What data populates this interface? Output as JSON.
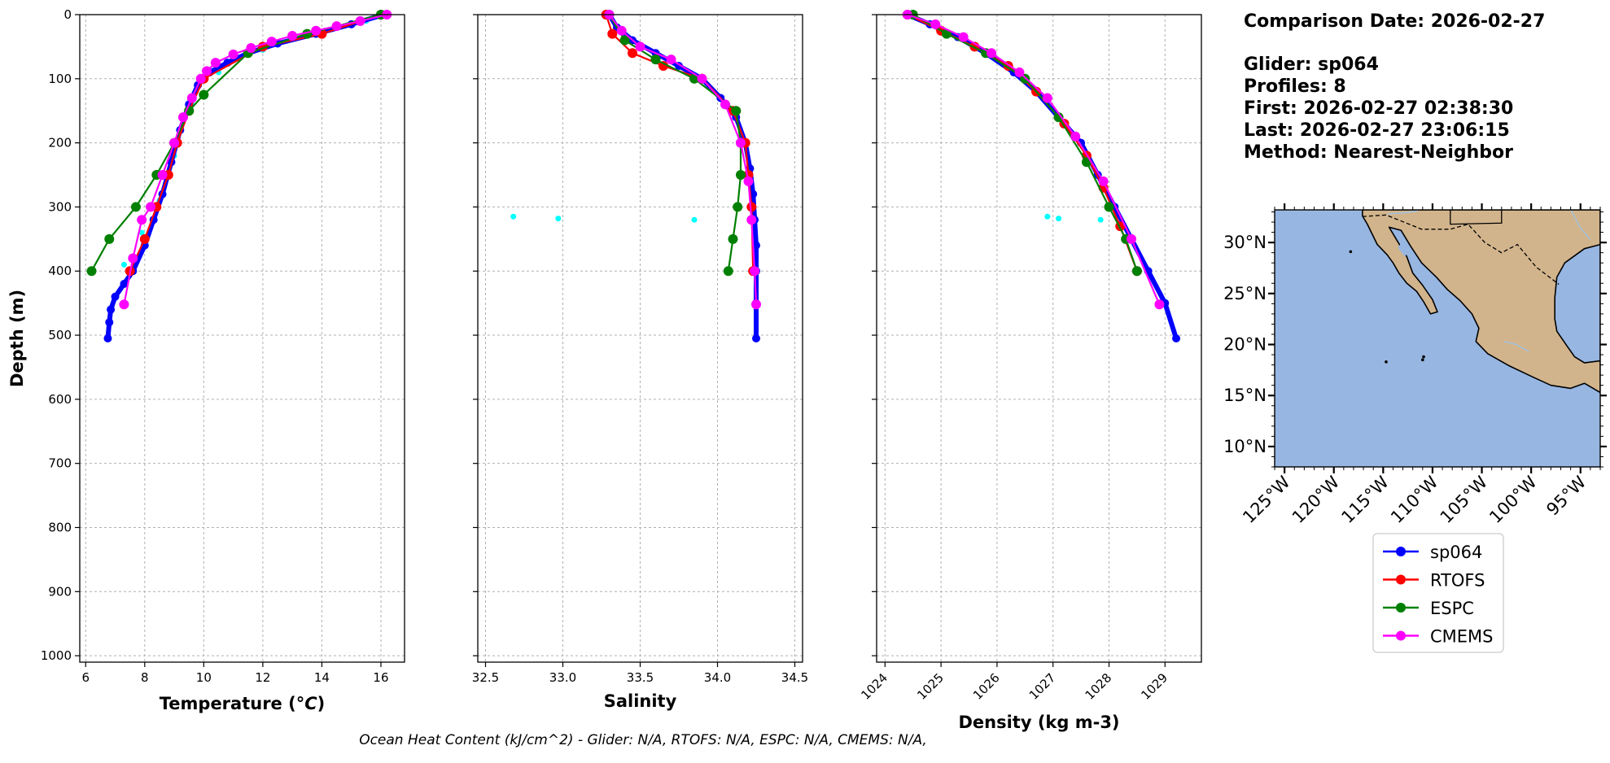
{
  "info": {
    "comparison_date": "Comparison Date: 2026-02-27",
    "glider": "Glider: sp064",
    "profiles": "Profiles: 8",
    "first": "First: 2026-02-27 02:38:30",
    "last": "Last: 2026-02-27 23:06:15",
    "method": "Method: Nearest-Neighbor"
  },
  "ohc_text": "Ocean Heat Content (kJ/cm^2) - Glider: N/A,  RTOFS: N/A,  ESPC: N/A,  CMEMS: N/A,",
  "colors": {
    "sp064": "#0000ff",
    "RTOFS": "#ff0000",
    "ESPC": "#008000",
    "CMEMS": "#ff00ff",
    "glider_raw": "#00ffff",
    "ocean": "#97b6e1",
    "land": "#d2b48c"
  },
  "legend": [
    "sp064",
    "RTOFS",
    "ESPC",
    "CMEMS"
  ],
  "map": {
    "lon_ticks": [
      "125°W",
      "120°W",
      "115°W",
      "110°W",
      "105°W",
      "100°W",
      "95°W"
    ],
    "lat_ticks": [
      "30°N",
      "25°N",
      "20°N",
      "15°N",
      "10°N"
    ],
    "lon_range": [
      -126,
      -93
    ],
    "lat_range": [
      8,
      33.2
    ]
  },
  "chart_data": [
    {
      "type": "line",
      "xlabel": "Temperature (°C)",
      "ylabel": "Depth (m)",
      "xlim": [
        5.8,
        16.8
      ],
      "ylim": [
        1010,
        0
      ],
      "xticks": [
        "6",
        "8",
        "10",
        "12",
        "14",
        "16"
      ],
      "yticks": [
        "0",
        "100",
        "200",
        "300",
        "400",
        "500",
        "600",
        "700",
        "800",
        "900",
        "1000"
      ],
      "grid": true,
      "series": [
        {
          "name": "sp064",
          "x": [
            16.1,
            15.0,
            13.8,
            12.5,
            11.5,
            10.8,
            10.2,
            9.8,
            9.5,
            9.2,
            8.9,
            8.6,
            8.3,
            8.0,
            7.6,
            7.3,
            7.0,
            6.85,
            6.8,
            6.75
          ],
          "y": [
            0,
            15,
            30,
            45,
            60,
            75,
            90,
            110,
            140,
            180,
            230,
            280,
            320,
            360,
            400,
            420,
            440,
            460,
            480,
            505
          ]
        },
        {
          "name": "RTOFS",
          "x": [
            16.0,
            14.0,
            12.0,
            10.0,
            9.5,
            9.1,
            8.8,
            8.4,
            8.0,
            7.5
          ],
          "y": [
            0,
            30,
            50,
            100,
            150,
            200,
            250,
            300,
            350,
            400
          ]
        },
        {
          "name": "ESPC",
          "x": [
            16.0,
            13.5,
            11.5,
            10.0,
            9.5,
            9.0,
            8.4,
            7.7,
            6.8,
            6.2
          ],
          "y": [
            0,
            30,
            60,
            125,
            150,
            200,
            250,
            300,
            350,
            400
          ]
        },
        {
          "name": "CMEMS",
          "x": [
            16.2,
            15.3,
            14.5,
            13.8,
            13.0,
            12.3,
            11.6,
            11.0,
            10.4,
            10.1,
            9.9,
            9.6,
            9.3,
            9.0,
            8.6,
            8.2,
            7.9,
            7.6,
            7.3
          ],
          "y": [
            0,
            10,
            18,
            25,
            33,
            42,
            52,
            62,
            75,
            88,
            100,
            130,
            160,
            200,
            250,
            300,
            320,
            380,
            452
          ]
        },
        {
          "name": "glider_raw",
          "x": [
            15.5,
            14.0,
            12.0,
            10.5,
            9.6,
            9.0,
            8.5,
            7.9,
            7.3
          ],
          "y": [
            10,
            30,
            55,
            90,
            140,
            220,
            290,
            340,
            390
          ]
        }
      ]
    },
    {
      "type": "line",
      "xlabel": "Salinity",
      "xlim": [
        32.45,
        34.55
      ],
      "ylim": [
        1010,
        0
      ],
      "xticks": [
        "32.5",
        "33.0",
        "33.5",
        "34.0",
        "34.5"
      ],
      "grid": true,
      "series": [
        {
          "name": "sp064",
          "x": [
            33.3,
            33.35,
            33.45,
            33.6,
            33.75,
            33.9,
            34.02,
            34.12,
            34.18,
            34.21,
            34.23,
            34.24,
            34.25,
            34.25,
            34.25,
            34.25
          ],
          "y": [
            0,
            20,
            40,
            60,
            80,
            100,
            130,
            160,
            200,
            240,
            280,
            320,
            360,
            400,
            450,
            505
          ]
        },
        {
          "name": "RTOFS",
          "x": [
            33.28,
            33.32,
            33.45,
            33.65,
            33.9,
            34.1,
            34.18,
            34.2,
            34.22,
            34.23
          ],
          "y": [
            0,
            30,
            60,
            80,
            100,
            150,
            200,
            250,
            300,
            400
          ]
        },
        {
          "name": "ESPC",
          "x": [
            33.3,
            33.4,
            33.6,
            33.85,
            34.12,
            34.15,
            34.15,
            34.13,
            34.1,
            34.07
          ],
          "y": [
            0,
            40,
            70,
            100,
            150,
            200,
            250,
            300,
            350,
            400
          ]
        },
        {
          "name": "CMEMS",
          "x": [
            33.3,
            33.38,
            33.5,
            33.7,
            33.9,
            34.05,
            34.15,
            34.2,
            34.22,
            34.24,
            34.25
          ],
          "y": [
            0,
            25,
            50,
            70,
            100,
            140,
            200,
            260,
            320,
            400,
            452
          ]
        },
        {
          "name": "glider_raw",
          "x": [
            32.68,
            32.97,
            33.85
          ],
          "y": [
            315,
            318,
            320
          ]
        }
      ]
    },
    {
      "type": "line",
      "xlabel": "Density (kg m-3)",
      "xlim": [
        1023.85,
        1029.65
      ],
      "ylim": [
        1010,
        0
      ],
      "xticks": [
        "1024",
        "1025",
        "1026",
        "1027",
        "1028",
        "1029"
      ],
      "grid": true,
      "series": [
        {
          "name": "sp064",
          "x": [
            1024.4,
            1024.8,
            1025.3,
            1025.8,
            1026.3,
            1026.7,
            1027.1,
            1027.5,
            1027.8,
            1028.1,
            1028.4,
            1028.7,
            1029.0,
            1029.2
          ],
          "y": [
            0,
            15,
            35,
            60,
            90,
            120,
            160,
            200,
            250,
            300,
            350,
            400,
            450,
            505
          ]
        },
        {
          "name": "RTOFS",
          "x": [
            1024.4,
            1025.0,
            1025.6,
            1026.2,
            1026.7,
            1027.2,
            1027.6,
            1027.9,
            1028.2,
            1028.5
          ],
          "y": [
            0,
            25,
            50,
            80,
            120,
            170,
            220,
            270,
            330,
            400
          ]
        },
        {
          "name": "ESPC",
          "x": [
            1024.5,
            1025.1,
            1025.8,
            1026.5,
            1027.1,
            1027.6,
            1028.0,
            1028.3,
            1028.5
          ],
          "y": [
            0,
            30,
            60,
            100,
            160,
            230,
            300,
            350,
            400
          ]
        },
        {
          "name": "CMEMS",
          "x": [
            1024.4,
            1024.9,
            1025.4,
            1025.9,
            1026.4,
            1026.9,
            1027.4,
            1027.9,
            1028.4,
            1028.9
          ],
          "y": [
            0,
            15,
            35,
            60,
            90,
            130,
            190,
            260,
            350,
            452
          ]
        },
        {
          "name": "glider_raw",
          "x": [
            1026.9,
            1027.1,
            1027.85
          ],
          "y": [
            315,
            318,
            320
          ]
        }
      ]
    }
  ]
}
